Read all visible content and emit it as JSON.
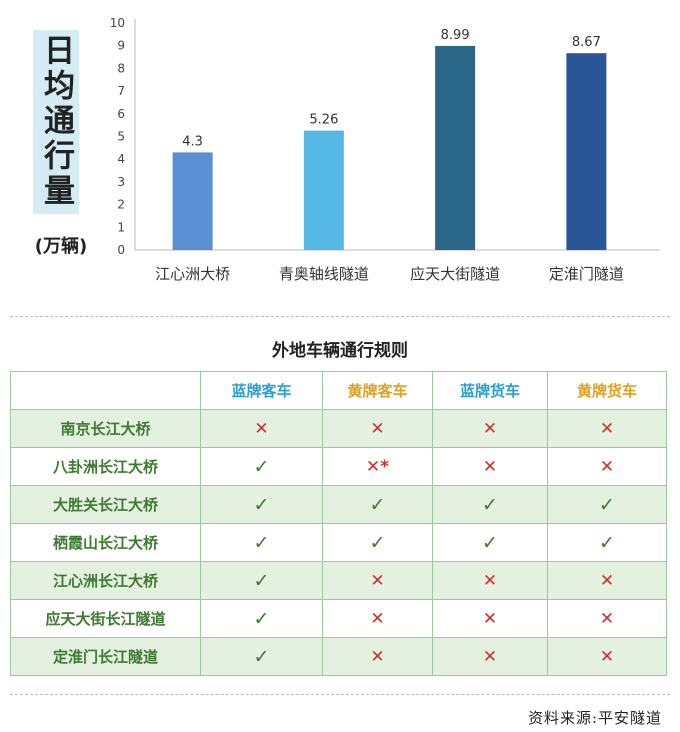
{
  "chart_data": {
    "type": "bar",
    "categories": [
      "江心洲大桥",
      "青奥轴线隧道",
      "应天大街隧道",
      "定淮门隧道"
    ],
    "values": [
      4.3,
      5.26,
      8.99,
      8.67
    ],
    "value_labels": [
      "4.3",
      "5.26",
      "8.99",
      "8.67"
    ],
    "bar_colors": [
      "#5b8fd4",
      "#55b8e4",
      "#2a6687",
      "#2a5596"
    ],
    "ylabel": "日均通行量",
    "yunit": "(万辆)",
    "ylim": [
      0,
      10
    ],
    "yticks": [
      0,
      1,
      2,
      3,
      4,
      5,
      6,
      7,
      8,
      9,
      10
    ],
    "grid": false
  },
  "table": {
    "title": "外地车辆通行规则",
    "headers": [
      "",
      "蓝牌客车",
      "黄牌客车",
      "蓝牌货车",
      "黄牌货车"
    ],
    "header_colors": [
      "",
      "blue",
      "gold",
      "blue",
      "gold"
    ],
    "rows": [
      {
        "place": "南京长江大桥",
        "marks": [
          "✕",
          "✕",
          "✕",
          "✕"
        ]
      },
      {
        "place": "八卦洲长江大桥",
        "marks": [
          "✓",
          "✕*",
          "✕",
          "✕"
        ]
      },
      {
        "place": "大胜关长江大桥",
        "marks": [
          "✓",
          "✓",
          "✓",
          "✓"
        ]
      },
      {
        "place": "栖霞山长江大桥",
        "marks": [
          "✓",
          "✓",
          "✓",
          "✓"
        ]
      },
      {
        "place": "江心洲长江大桥",
        "marks": [
          "✓",
          "✕",
          "✕",
          "✕"
        ]
      },
      {
        "place": "应天大街长江隧道",
        "marks": [
          "✓",
          "✕",
          "✕",
          "✕"
        ]
      },
      {
        "place": "定淮门长江隧道",
        "marks": [
          "✓",
          "✕",
          "✕",
          "✕"
        ]
      }
    ]
  },
  "source": "资料来源:平安隧道"
}
